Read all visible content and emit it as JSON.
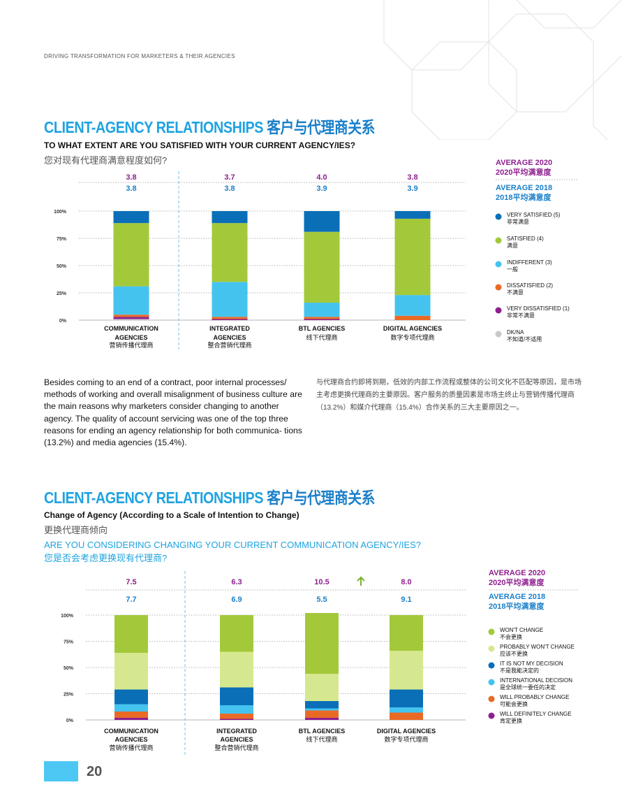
{
  "header": {
    "text": "DRIVING TRANSFORMATION FOR MARKETERS & THEIR AGENCIES"
  },
  "section1": {
    "title_en": "CLIENT-AGENCY RELATIONSHIPS",
    "title_cn": "客户与代理商关系",
    "question_en": "TO WHAT EXTENT ARE YOU SATISFIED WITH YOUR CURRENT AGENCY/IES?",
    "question_cn": "您对现有代理商满意程度如何?"
  },
  "section2": {
    "title_en": "CLIENT-AGENCY RELATIONSHIPS",
    "title_cn": "客户与代理商关系",
    "subtitle_en": "Change of Agency (According to a Scale of Intention to Change)",
    "subtitle_cn": "更换代理商倾向",
    "question_en": "ARE YOU CONSIDERING CHANGING YOUR CURRENT COMMUNICATION AGENCY/IES?",
    "question_cn": "您是否会考虑更换现有代理商?"
  },
  "paragraph": {
    "en": "Besides coming to an end of a contract, poor internal processes/ methods of working and overall misalignment of business culture are the main reasons why marketers consider changing to another agency. The quality of account servicing was one of the top three reasons for ending an agency relationship for both communica- tions (13.2%) and media agencies (15.4%).",
    "cn": "与代理商合约即将到期，低效的内部工作流程或整体的公司文化不匹配等原因，是市场主考虑更换代理商的主要原因。客户服务的质量因素是市场主终止与营销传播代理商（13.2%）和媒介代理商（15.4%）合作关系的三大主要原因之一。"
  },
  "page": {
    "number": "20"
  },
  "colors": {
    "very_satisfied": "#0b6fb8",
    "satisfied": "#a3c93a",
    "indifferent": "#45c3ef",
    "dissatisfied": "#e96a25",
    "very_dissatisfied": "#8e1f8f",
    "dkna": "#c8c8c8",
    "wont_change": "#a3c93a",
    "probably_wont": "#d6e88f"
  },
  "chart_data": [
    {
      "type": "bar",
      "stacked": true,
      "title": "TO WHAT EXTENT ARE YOU SATISFIED WITH YOUR CURRENT AGENCY/IES?",
      "categories": [
        {
          "en": "COMMUNICATION AGENCIES",
          "en1": "COMMUNICATION",
          "en2": "AGENCIES",
          "cn": "营销传播代理商"
        },
        {
          "en": "INTEGRATED AGENCIES",
          "en1": "INTEGRATED",
          "en2": "AGENCIES",
          "cn": "整合营销代理商"
        },
        {
          "en": "BTL AGENCIES",
          "en1": "BTL AGENCIES",
          "en2": "",
          "cn": "线下代理商"
        },
        {
          "en": "DIGITAL AGENCIES",
          "en1": "DIGITAL AGENCIES",
          "en2": "",
          "cn": "数字专项代理商"
        }
      ],
      "y_ticks": [
        "0%",
        "25%",
        "50%",
        "75%",
        "100%"
      ],
      "ylim": [
        0,
        100
      ],
      "average_2020": {
        "label": "AVERAGE 2020",
        "label_cn": "2020平均满意度",
        "values": [
          "3.8",
          "3.7",
          "4.0",
          "3.8"
        ]
      },
      "average_2018": {
        "label": "AVERAGE 2018",
        "label_cn": "2018平均满意度",
        "values": [
          "3.8",
          "3.8",
          "3.9",
          "3.9"
        ]
      },
      "series": [
        {
          "name": "DK/NA",
          "name_cn": "不知道/不适用",
          "color_key": "dkna",
          "values": [
            1,
            0,
            0,
            0
          ]
        },
        {
          "name": "VERY DISSATISFIED (1)",
          "name_cn": "非常不满意",
          "color_key": "very_dissatisfied",
          "values": [
            2,
            1,
            1,
            0
          ]
        },
        {
          "name": "DISSATISFIED (2)",
          "name_cn": "不满意",
          "color_key": "dissatisfied",
          "values": [
            2,
            2,
            2,
            4
          ]
        },
        {
          "name": "INDIFFERENT (3)",
          "name_cn": "一般",
          "color_key": "indifferent",
          "values": [
            26,
            32,
            13,
            19
          ]
        },
        {
          "name": "SATISFIED (4)",
          "name_cn": "满意",
          "color_key": "satisfied",
          "values": [
            58,
            54,
            65,
            70
          ]
        },
        {
          "name": "VERY SATISFIED (5)",
          "name_cn": "非常满意",
          "color_key": "very_satisfied",
          "values": [
            11,
            11,
            19,
            7
          ]
        }
      ],
      "legend_order": [
        5,
        4,
        3,
        2,
        1,
        0
      ]
    },
    {
      "type": "bar",
      "stacked": true,
      "title": "ARE YOU CONSIDERING CHANGING YOUR CURRENT COMMUNICATION AGENCY/IES?",
      "categories": [
        {
          "en": "COMMUNICATION AGENCIES",
          "en1": "COMMUNICATION",
          "en2": "AGENCIES",
          "cn": "营销传播代理商"
        },
        {
          "en": "INTEGRATED AGENCIES",
          "en1": "INTEGRATED",
          "en2": "AGENCIES",
          "cn": "整合营销代理商"
        },
        {
          "en": "BTL AGENCIES",
          "en1": "BTL AGENCIES",
          "en2": "",
          "cn": "线下代理商"
        },
        {
          "en": "DIGITAL AGENCIES",
          "en1": "DIGITAL AGENCIES",
          "en2": "",
          "cn": "数字专项代理商"
        }
      ],
      "y_ticks": [
        "0%",
        "25%",
        "50%",
        "75%",
        "100%"
      ],
      "ylim": [
        0,
        100
      ],
      "average_2020": {
        "label": "AVERAGE 2020",
        "label_cn": "2020平均满意度",
        "values": [
          "7.5",
          "6.3",
          "10.5",
          "8.0"
        ]
      },
      "average_2018": {
        "label": "AVERAGE 2018",
        "label_cn": "2018平均满意度",
        "values": [
          "7.7",
          "6.9",
          "5.5",
          "9.1"
        ]
      },
      "trend_arrow": {
        "category_index": 2,
        "direction": "up"
      },
      "series": [
        {
          "name": "WILL DEFINITELY CHANGE",
          "name_cn": "肯定更换",
          "color_key": "very_dissatisfied",
          "values": [
            2,
            1,
            2,
            0
          ]
        },
        {
          "name": "WILL PROBABLY CHANGE",
          "name_cn": "可能会更换",
          "color_key": "dissatisfied",
          "values": [
            6,
            5,
            7,
            7
          ]
        },
        {
          "name": "INTERNATIONAL DECISION",
          "name_cn": "是全球统一委任的决定",
          "color_key": "indifferent",
          "values": [
            7,
            8,
            2,
            5
          ]
        },
        {
          "name": "IT IS NOT MY DECISION",
          "name_cn": "不是我能决定的",
          "color_key": "very_satisfied",
          "values": [
            14,
            17,
            7,
            17
          ]
        },
        {
          "name": "PROBABLY WON'T CHANGE",
          "name_cn": "应该不更换",
          "color_key": "probably_wont",
          "values": [
            35,
            34,
            26,
            37
          ]
        },
        {
          "name": "WON'T CHANGE",
          "name_cn": "不会更换",
          "color_key": "wont_change",
          "values": [
            36,
            35,
            58,
            34
          ]
        }
      ],
      "legend_order": [
        5,
        4,
        3,
        2,
        1,
        0
      ]
    }
  ]
}
